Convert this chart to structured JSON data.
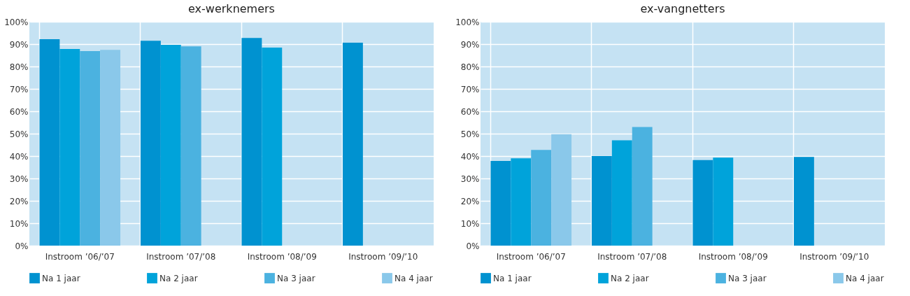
{
  "chart_data": [
    {
      "type": "bar",
      "title": "ex-werknemers",
      "categories": [
        "Instroom ’06/’07",
        "Instroom ’07/’08",
        "Instroom ’08/’09",
        "Instroom ’09/’10"
      ],
      "series": [
        {
          "name": "Na 1 jaar",
          "color": "#0092d0",
          "values": [
            92.2,
            91.5,
            92.7,
            90.6
          ]
        },
        {
          "name": "Na 2 jaar",
          "color": "#00a3da",
          "values": [
            87.8,
            89.7,
            88.4,
            null
          ]
        },
        {
          "name": "Na 3 jaar",
          "color": "#4bb2e0",
          "values": [
            86.9,
            89.0,
            null,
            null
          ]
        },
        {
          "name": "Na 4 jaar",
          "color": "#8ac8ea",
          "values": [
            87.4,
            null,
            null,
            null
          ]
        }
      ],
      "ylim": [
        0,
        100
      ],
      "yticks": [
        {
          "value": 0,
          "label": "0%"
        },
        {
          "value": 10,
          "label": "10%"
        },
        {
          "value": 20,
          "label": "20%"
        },
        {
          "value": 30,
          "label": "30%"
        },
        {
          "value": 40,
          "label": "40%"
        },
        {
          "value": 50,
          "label": "50%"
        },
        {
          "value": 60,
          "label": "60%"
        },
        {
          "value": 70,
          "label": "70%"
        },
        {
          "value": 80,
          "label": "80%"
        },
        {
          "value": 90,
          "label": "90%"
        },
        {
          "value": 100,
          "label": "100%"
        }
      ],
      "grid": true,
      "legend": "bottom"
    },
    {
      "type": "bar",
      "title": "ex-vangnetters",
      "categories": [
        "Instroom ’06/’07",
        "Instroom ’07/’08",
        "Instroom ’08/’09",
        "Instroom ’09/’10"
      ],
      "series": [
        {
          "name": "Na 1 jaar",
          "color": "#0092d0",
          "values": [
            37.8,
            40.0,
            38.2,
            39.6
          ]
        },
        {
          "name": "Na 2 jaar",
          "color": "#00a3da",
          "values": [
            39.0,
            47.0,
            39.3,
            null
          ]
        },
        {
          "name": "Na 3 jaar",
          "color": "#4bb2e0",
          "values": [
            42.7,
            53.0,
            null,
            null
          ]
        },
        {
          "name": "Na 4 jaar",
          "color": "#8ac8ea",
          "values": [
            49.8,
            null,
            null,
            null
          ]
        }
      ],
      "ylim": [
        0,
        100
      ],
      "yticks": [
        {
          "value": 0,
          "label": "0%"
        },
        {
          "value": 10,
          "label": "10%"
        },
        {
          "value": 20,
          "label": "20%"
        },
        {
          "value": 30,
          "label": "30%"
        },
        {
          "value": 40,
          "label": "40%"
        },
        {
          "value": 50,
          "label": "50%"
        },
        {
          "value": 60,
          "label": "60%"
        },
        {
          "value": 70,
          "label": "70%"
        },
        {
          "value": 80,
          "label": "80%"
        },
        {
          "value": 90,
          "label": "90%"
        },
        {
          "value": 100,
          "label": "100%"
        }
      ],
      "grid": true,
      "legend": "bottom"
    }
  ]
}
